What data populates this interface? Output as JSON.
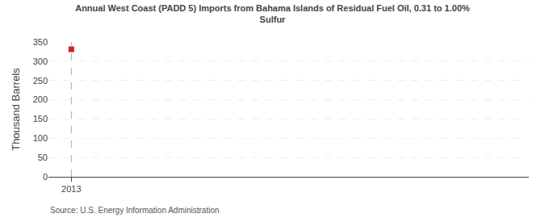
{
  "chart_data": {
    "type": "scatter",
    "title": "Annual West Coast (PADD 5) Imports from Bahama Islands of Residual Fuel Oil, 0.31 to 1.00%\nSulfur",
    "ylabel": "Thousand Barrels",
    "annotations": [
      "Source: U.S. Energy Information Administration"
    ],
    "x": [
      2013
    ],
    "values": [
      331
    ],
    "color": "#cc2222",
    "marker": "square",
    "xlim": [
      2012.5,
      2023
    ],
    "xticks": [
      2013
    ],
    "ylim": [
      0,
      350
    ],
    "yticks": [
      0,
      50,
      100,
      150,
      200,
      250,
      300,
      350
    ],
    "grid": true
  }
}
